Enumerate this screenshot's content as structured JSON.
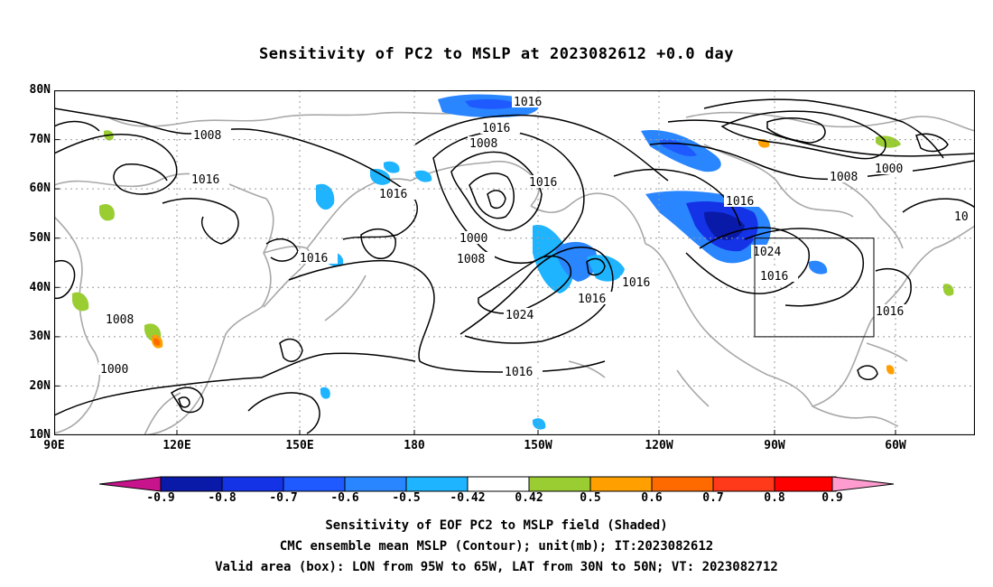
{
  "title": "Sensitivity of PC2 to MSLP at 2023082612 +0.0 day",
  "lat_labels": [
    "80N",
    "70N",
    "60N",
    "50N",
    "40N",
    "30N",
    "20N",
    "10N"
  ],
  "lon_labels": [
    "90E",
    "120E",
    "150E",
    "180",
    "150W",
    "120W",
    "90W",
    "60W"
  ],
  "contour_labels": {
    "c1": "1016",
    "c2": "1016",
    "c3": "1008",
    "c4": "1008",
    "c5": "1016",
    "c6": "1016",
    "c7": "1016",
    "c8": "1000",
    "c9": "1008",
    "c10": "1016",
    "c11": "1024",
    "c12": "1016",
    "c13": "1016",
    "c14": "1016",
    "c15": "1008",
    "c16": "1000",
    "c17": "1016",
    "c18": "1024",
    "c19": "1016",
    "c20": "1016",
    "c21": "1008",
    "c22": "1000",
    "c23": "10",
    "c24": "1016"
  },
  "colorbar": {
    "labels": [
      "-0.9",
      "-0.8",
      "-0.7",
      "-0.6",
      "-0.5",
      "-0.42",
      "0.42",
      "0.5",
      "0.6",
      "0.7",
      "0.8",
      "0.9"
    ],
    "colors": [
      "#0a1aa8",
      "#1432e6",
      "#1e5aff",
      "#2a86ff",
      "#1eb4ff",
      "#ffffff",
      "#9acd32",
      "#ff9f00",
      "#ff6a00",
      "#ff3a1a",
      "#ff0000"
    ],
    "low_end_color": "#c8148c",
    "high_end_color": "#ff9ccf"
  },
  "footer": {
    "line1": "Sensitivity of EOF PC2 to MSLP field (Shaded)",
    "line2": "CMC ensemble mean MSLP (Contour); unit(mb); IT:2023082612",
    "line3": "Valid area (box): LON from 95W to 65W, LAT from 30N to 50N; VT: 2023082712"
  }
}
